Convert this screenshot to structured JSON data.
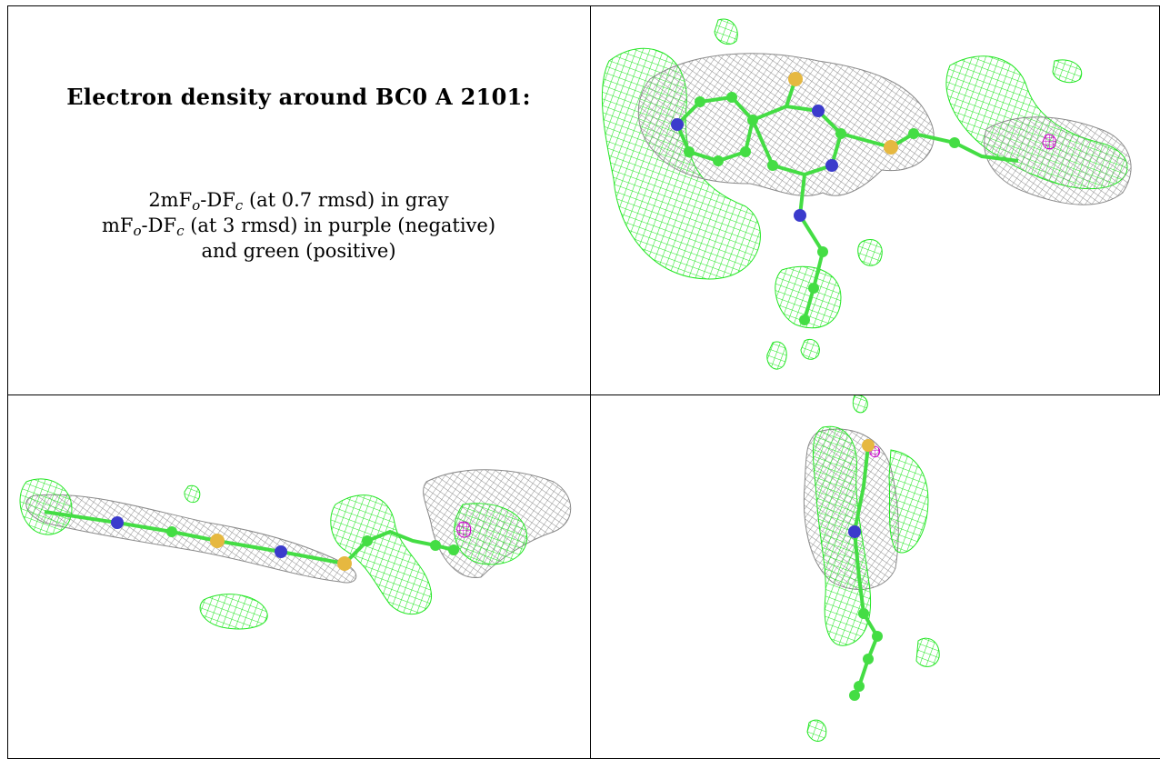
{
  "caption": {
    "title": "Electron density around BC0 A 2101:",
    "map1_prefix": "2mF",
    "map1_sub_o": "o",
    "map1_mid": "-DF",
    "map1_sub_c": "c",
    "map1_rest": " (at 0.7 rmsd) in gray",
    "map2_prefix": "mF",
    "map2_sub_o": "o",
    "map2_mid": "-DF",
    "map2_sub_c": "c",
    "map2_rest": " (at 3 rmsd) in purple (negative)",
    "map3": "and green (positive)"
  },
  "colors": {
    "gray_mesh": "#8a8a8a",
    "green_mesh": "#22e622",
    "purple_mesh": "#cc00cc",
    "carbon": "#44dd44",
    "nitrogen": "#3b3bcc",
    "sulfur": "#e6b840",
    "border": "#000000"
  },
  "views": [
    {
      "name": "view-top-right"
    },
    {
      "name": "view-bottom-left"
    },
    {
      "name": "view-bottom-right"
    }
  ]
}
